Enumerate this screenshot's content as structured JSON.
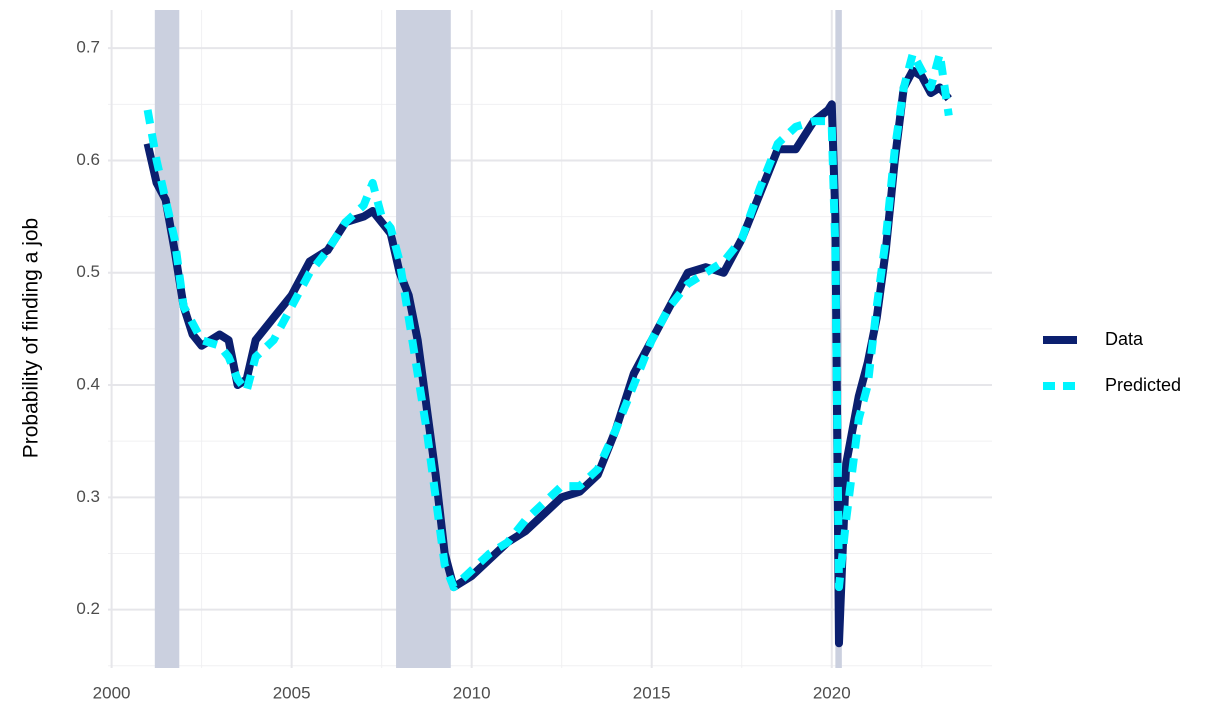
{
  "chart_data": {
    "type": "line",
    "y_label": "Probability of finding a job",
    "x": [
      2001.0,
      2001.25,
      2001.5,
      2001.75,
      2002.0,
      2002.25,
      2002.5,
      2003.0,
      2003.25,
      2003.5,
      2003.75,
      2004.0,
      2004.5,
      2005.0,
      2005.5,
      2006.0,
      2006.5,
      2007.0,
      2007.25,
      2007.5,
      2007.75,
      2008.0,
      2008.25,
      2008.5,
      2008.75,
      2009.0,
      2009.25,
      2009.5,
      2010.0,
      2010.5,
      2011.0,
      2011.5,
      2012.0,
      2012.5,
      2013.0,
      2013.5,
      2014.0,
      2014.5,
      2015.0,
      2015.5,
      2016.0,
      2016.5,
      2017.0,
      2017.5,
      2018.0,
      2018.5,
      2019.0,
      2019.5,
      2019.9,
      2020.0,
      2020.1,
      2020.2,
      2020.4,
      2020.75,
      2021.0,
      2021.25,
      2021.5,
      2021.75,
      2022.0,
      2022.25,
      2022.5,
      2022.75,
      2023.0,
      2023.25
    ],
    "series": [
      {
        "name": "Data",
        "color": "#0b1f6f",
        "dashed": false,
        "values": [
          0.615,
          0.58,
          0.565,
          0.52,
          0.47,
          0.445,
          0.435,
          0.445,
          0.44,
          0.4,
          0.405,
          0.44,
          0.46,
          0.48,
          0.51,
          0.52,
          0.545,
          0.55,
          0.555,
          0.545,
          0.535,
          0.5,
          0.48,
          0.44,
          0.38,
          0.32,
          0.25,
          0.22,
          0.23,
          0.245,
          0.26,
          0.27,
          0.285,
          0.3,
          0.305,
          0.32,
          0.36,
          0.41,
          0.44,
          0.47,
          0.5,
          0.505,
          0.5,
          0.53,
          0.57,
          0.61,
          0.61,
          0.635,
          0.645,
          0.65,
          0.55,
          0.17,
          0.33,
          0.39,
          0.42,
          0.46,
          0.52,
          0.6,
          0.665,
          0.68,
          0.675,
          0.66,
          0.665,
          0.655
        ]
      },
      {
        "name": "Predicted",
        "color": "#00f5ff",
        "dashed": true,
        "values": [
          0.645,
          0.6,
          0.565,
          0.53,
          0.47,
          0.455,
          0.44,
          0.435,
          0.425,
          0.405,
          0.395,
          0.425,
          0.44,
          0.47,
          0.5,
          0.52,
          0.545,
          0.56,
          0.58,
          0.55,
          0.54,
          0.51,
          0.46,
          0.41,
          0.36,
          0.3,
          0.24,
          0.22,
          0.235,
          0.25,
          0.26,
          0.28,
          0.295,
          0.31,
          0.31,
          0.325,
          0.36,
          0.4,
          0.44,
          0.47,
          0.49,
          0.5,
          0.51,
          0.53,
          0.575,
          0.615,
          0.63,
          0.635,
          0.635,
          0.63,
          0.52,
          0.22,
          0.28,
          0.37,
          0.4,
          0.47,
          0.53,
          0.61,
          0.665,
          0.695,
          0.68,
          0.665,
          0.695,
          0.64
        ]
      }
    ],
    "shaded_regions": [
      [
        2001.2,
        2001.88
      ],
      [
        2007.9,
        2009.42
      ],
      [
        2020.1,
        2020.28
      ]
    ],
    "shade_color": "#cbd0df",
    "xlim": [
      1999.9,
      2024.45
    ],
    "ylim": [
      0.148,
      0.734
    ],
    "xticks": [
      2000,
      2005,
      2010,
      2015,
      2020
    ],
    "yticks": [
      0.2,
      0.3,
      0.4,
      0.5,
      0.6,
      0.7
    ],
    "x_minor_ticks": [
      2002.5,
      2007.5,
      2012.5,
      2017.5,
      2022.5
    ],
    "y_minor_ticks": [
      0.15,
      0.25,
      0.35,
      0.45,
      0.55,
      0.65
    ],
    "grid": true,
    "legend": "right"
  }
}
